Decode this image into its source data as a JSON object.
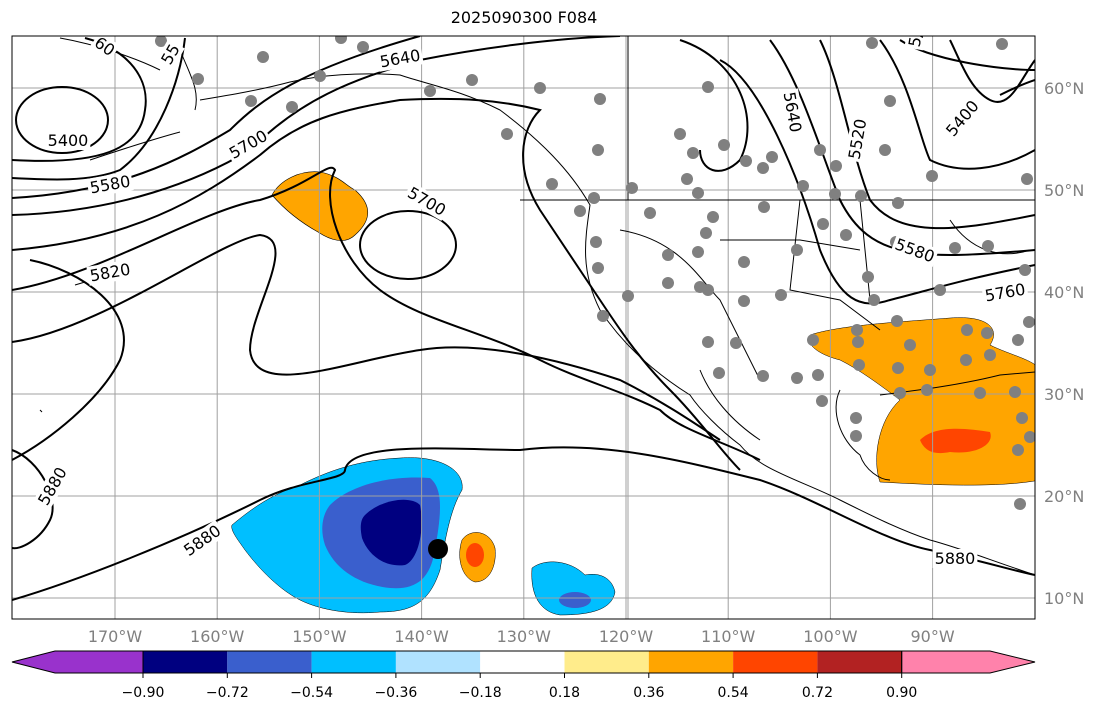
{
  "title": "2025090300 F084",
  "lon_ticks": [
    "170°W",
    "160°W",
    "150°W",
    "140°W",
    "130°W",
    "120°W",
    "110°W",
    "100°W",
    "90°W"
  ],
  "lat_ticks": [
    "60°N",
    "50°N",
    "40°N",
    "30°N",
    "20°N",
    "10°N"
  ],
  "contour_labels": [
    "60",
    "55",
    "5400",
    "5580",
    "5640",
    "5700",
    "5820",
    "5700",
    "5880",
    "5880",
    "5880",
    "5640",
    "5520",
    "5400",
    "5580",
    "5760",
    "5/"
  ],
  "colorbar": {
    "colors": [
      "#9932cc",
      "#000080",
      "#3a5fcd",
      "#00bfff",
      "#b0e2ff",
      "#ffffff",
      "#ffec8b",
      "#ffa500",
      "#ff4500",
      "#b22222",
      "#ff82ab"
    ],
    "labels": [
      "−0.90",
      "−0.72",
      "−0.54",
      "−0.36",
      "−0.18",
      "0.18",
      "0.36",
      "0.54",
      "0.72",
      "0.90"
    ]
  },
  "colors": {
    "grid": "#a0a0a0",
    "station": "#808080",
    "contour": "#000000"
  }
}
